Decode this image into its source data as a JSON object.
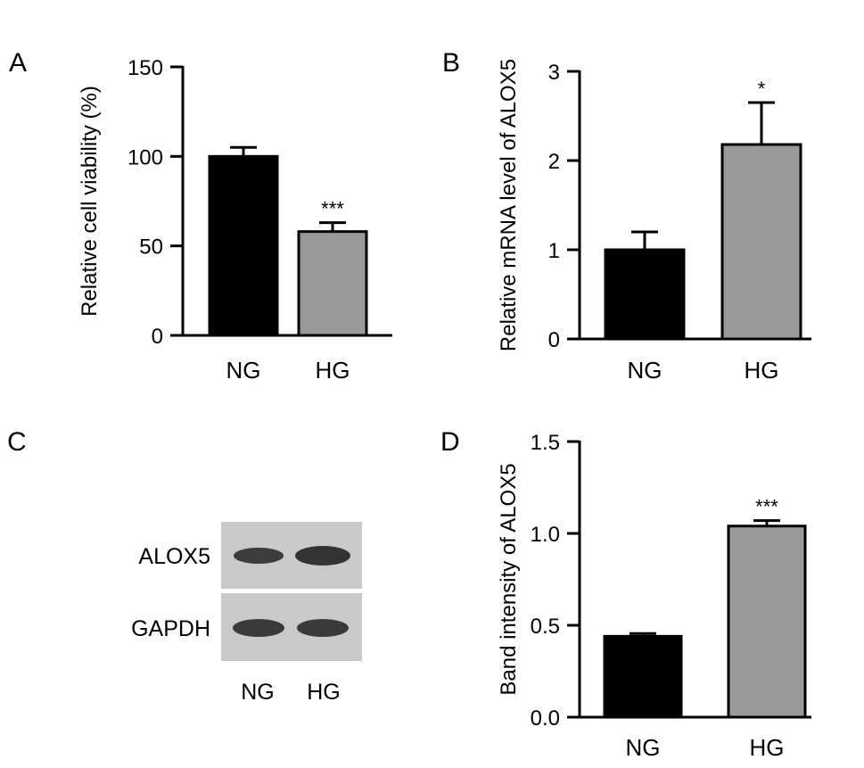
{
  "chart_data": [
    {
      "panel": "A",
      "type": "bar",
      "categories": [
        "NG",
        "HG"
      ],
      "values": [
        100,
        58
      ],
      "errors": [
        5,
        5
      ],
      "significance": [
        "",
        "***"
      ],
      "ylabel": "Relative cell viability (%)",
      "ylim": [
        0,
        150
      ],
      "yticks": [
        0,
        50,
        100,
        150
      ],
      "colors": [
        "#000000",
        "#999999"
      ]
    },
    {
      "panel": "B",
      "type": "bar",
      "categories": [
        "NG",
        "HG"
      ],
      "values": [
        1.0,
        2.18
      ],
      "errors": [
        0.2,
        0.47
      ],
      "significance": [
        "",
        "*"
      ],
      "ylabel": "Relative mRNA level of ALOX5",
      "ylim": [
        0,
        3
      ],
      "yticks": [
        0,
        1,
        2,
        3
      ],
      "colors": [
        "#000000",
        "#999999"
      ]
    },
    {
      "panel": "D",
      "type": "bar",
      "categories": [
        "NG",
        "HG"
      ],
      "values": [
        0.44,
        1.04
      ],
      "errors": [
        0.015,
        0.03
      ],
      "significance": [
        "",
        "***"
      ],
      "ylabel": "Band intensity of ALOX5",
      "ylim": [
        0,
        1.5
      ],
      "yticks": [
        "0.0",
        "0.5",
        "1.0",
        "1.5"
      ],
      "colors": [
        "#000000",
        "#999999"
      ]
    }
  ],
  "blot": {
    "panel": "C",
    "rows": [
      "ALOX5",
      "GAPDH"
    ],
    "lanes": [
      "NG",
      "HG"
    ]
  }
}
